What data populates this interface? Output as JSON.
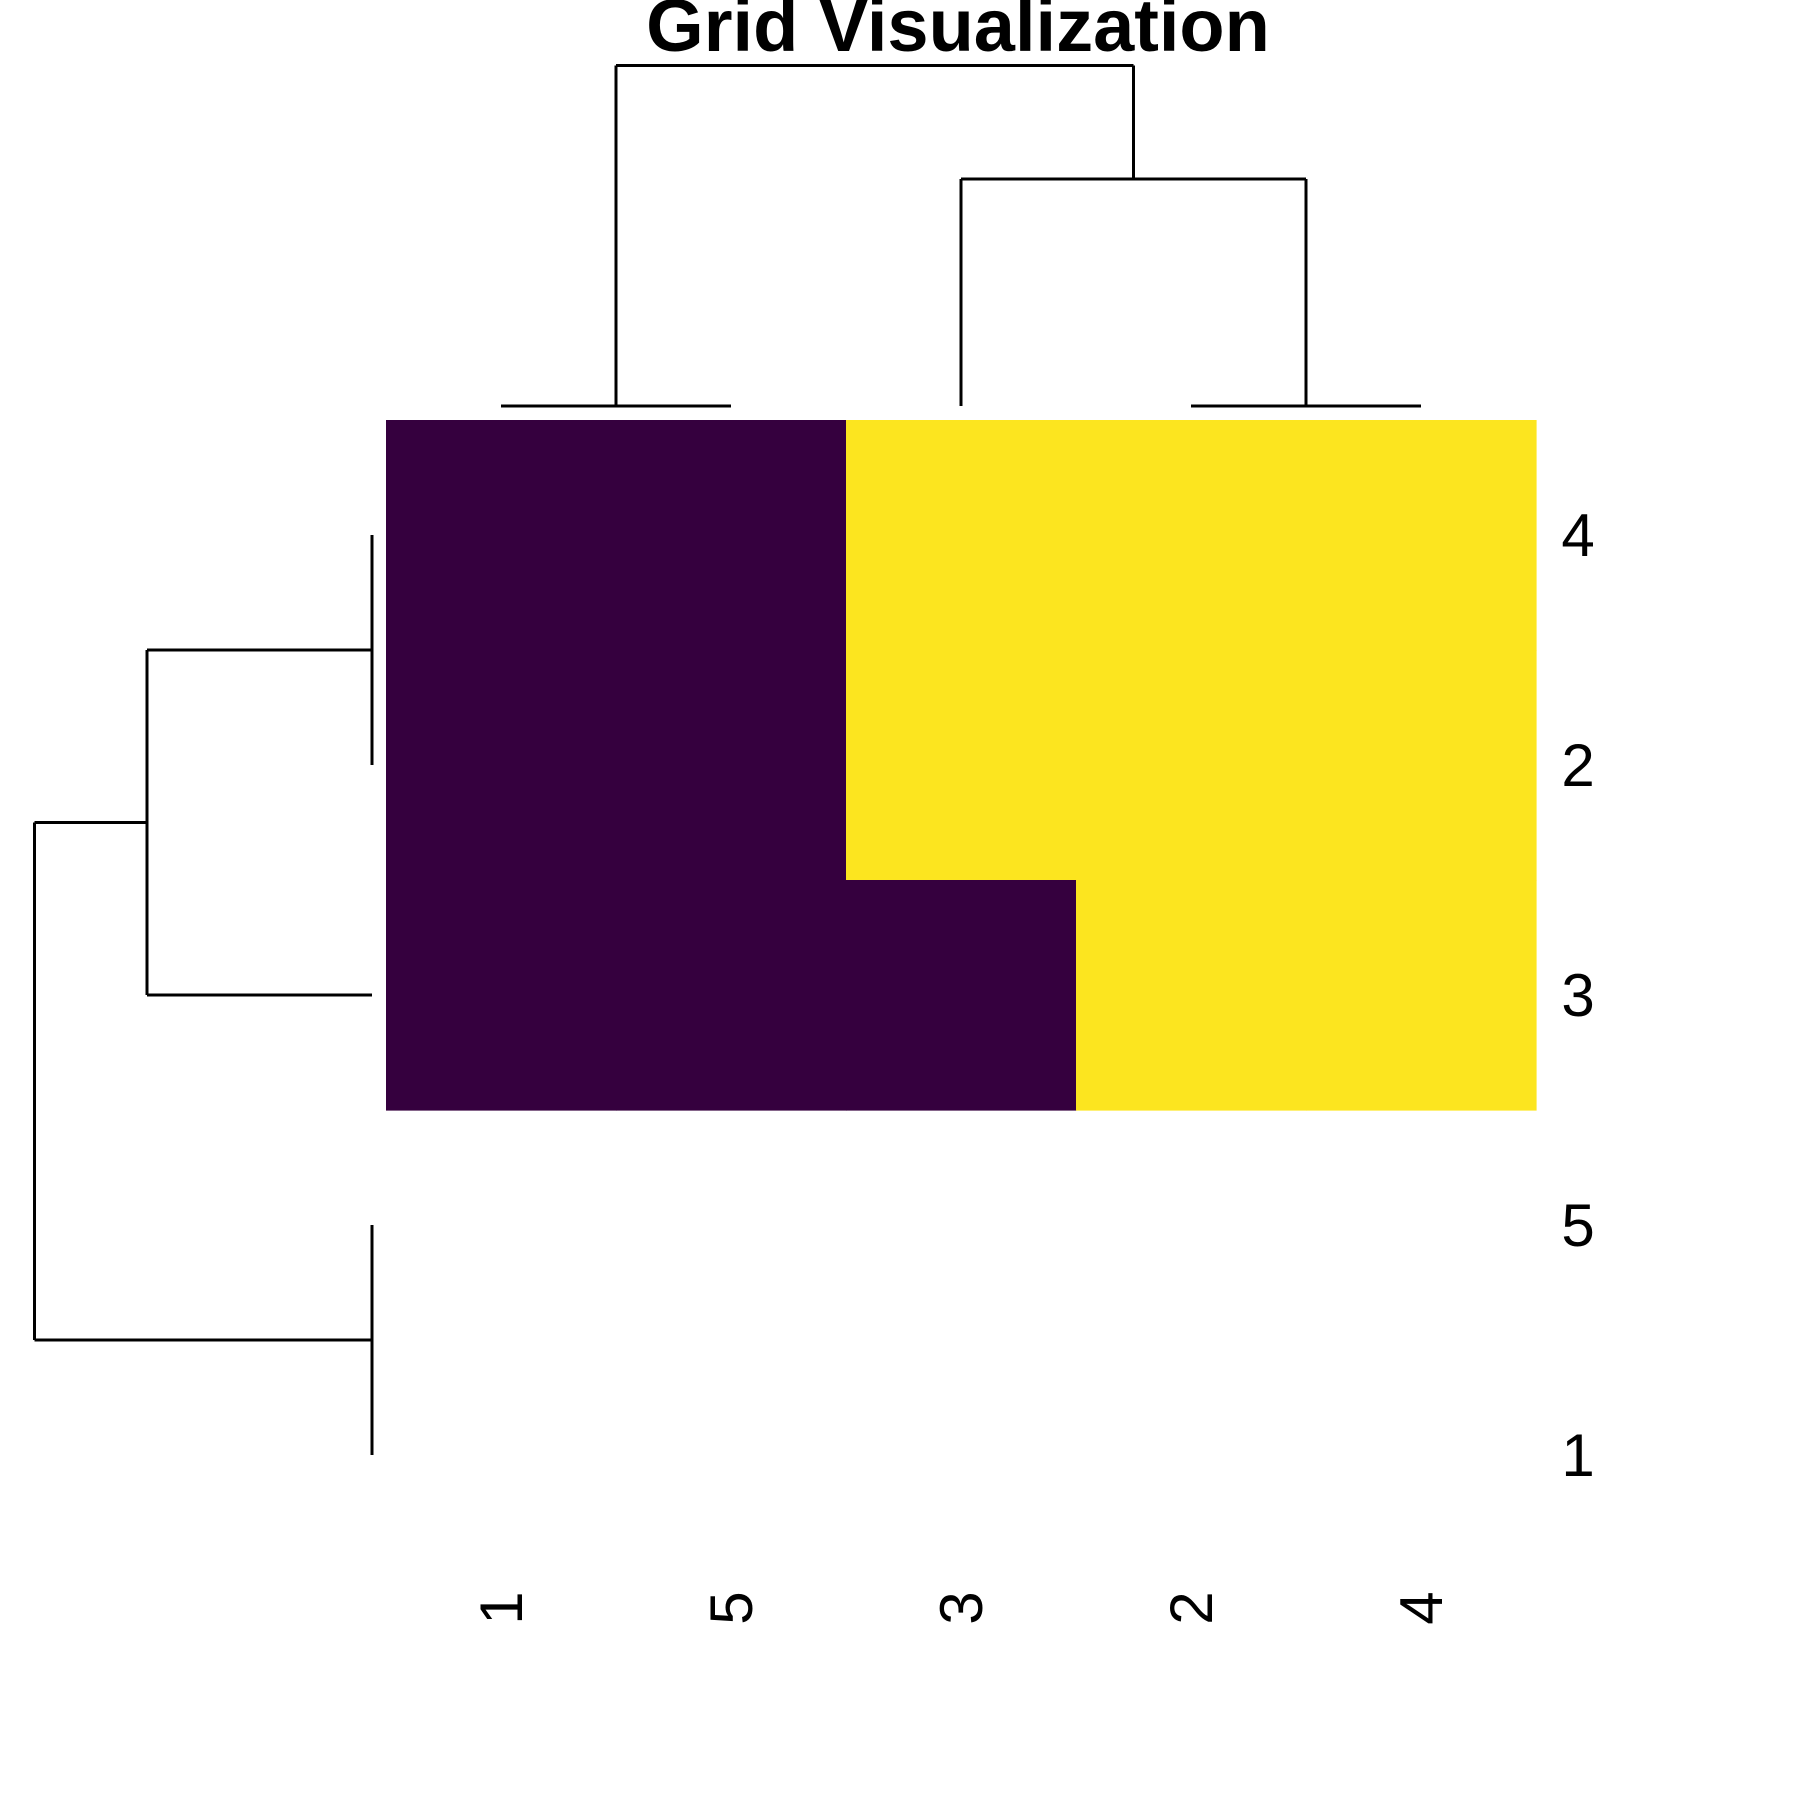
{
  "chart_data": {
    "type": "heatmap",
    "title": "Grid Visualization",
    "xlabel": "",
    "ylabel": "",
    "columns": [
      "1",
      "5",
      "3",
      "2",
      "4"
    ],
    "rows": [
      "4",
      "2",
      "3",
      "5",
      "1"
    ],
    "values": [
      [
        0,
        0,
        1,
        1,
        1
      ],
      [
        0,
        0,
        1,
        1,
        1
      ],
      [
        0,
        0,
        0,
        1,
        1
      ],
      [
        null,
        null,
        null,
        null,
        null
      ],
      [
        null,
        null,
        null,
        null,
        null
      ]
    ],
    "colors": {
      "low": "#35003e",
      "high": "#fce51f",
      "missing": "#ffffff",
      "lines": "#000000"
    },
    "col_dendrogram": [
      {
        "merge": [
          "1",
          "5"
        ],
        "height": 0
      },
      {
        "merge": [
          "2",
          "4"
        ],
        "height": 0
      },
      {
        "merge": [
          "3",
          [
            "2",
            "4"
          ]
        ],
        "height": 1
      },
      {
        "merge": [
          [
            "1",
            "5"
          ],
          [
            "3",
            [
              "2",
              "4"
            ]
          ]
        ],
        "height": 1.5
      }
    ],
    "row_dendrogram": [
      {
        "merge": [
          "4",
          "2"
        ],
        "height": 0
      },
      {
        "merge": [
          "5",
          "1"
        ],
        "height": 0
      },
      {
        "merge": [
          [
            "4",
            "2"
          ],
          "3"
        ],
        "height": 1
      },
      {
        "merge": [
          [
            [
              "4",
              "2"
            ],
            "3"
          ],
          [
            "5",
            "1"
          ]
        ],
        "height": 1.5
      }
    ],
    "grid": false,
    "legend": "none"
  }
}
